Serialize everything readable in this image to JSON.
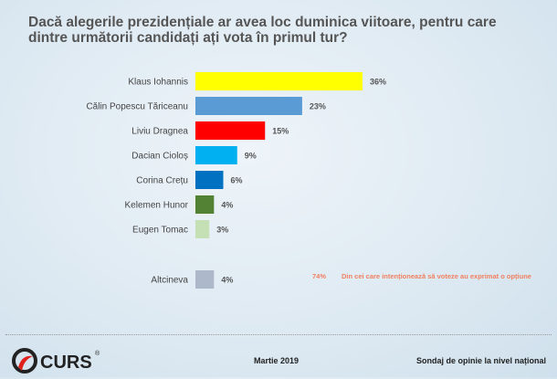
{
  "chart_data": {
    "type": "bar",
    "orientation": "horizontal",
    "title": "Dacă alegerile prezidențiale ar avea loc duminica viitoare, pentru care dintre următorii candidați ați vota în primul tur?",
    "categories": [
      "Klaus Iohannis",
      "Călin Popescu Tăriceanu",
      "Liviu Dragnea",
      "Dacian Cioloș",
      "Corina Crețu",
      "Kelemen Hunor",
      "Eugen Tomac",
      "Altcineva"
    ],
    "values": [
      36,
      23,
      15,
      9,
      6,
      4,
      3,
      4
    ],
    "value_labels": [
      "36%",
      "23%",
      "15%",
      "9%",
      "6%",
      "4%",
      "3%",
      "4%"
    ],
    "colors": [
      "#ffff00",
      "#5b9bd5",
      "#ff0000",
      "#00b0f0",
      "#0070c0",
      "#548235",
      "#c5e0b4",
      "#adb9ca"
    ],
    "unit": "%",
    "grid": false
  },
  "note": {
    "value": "74%",
    "text": "Din cei care intenționează să voteze au exprimat o opțiune"
  },
  "footer": {
    "logo": "CURS",
    "date": "Martie 2019",
    "source": "Sondaj de opinie la nivel național"
  }
}
